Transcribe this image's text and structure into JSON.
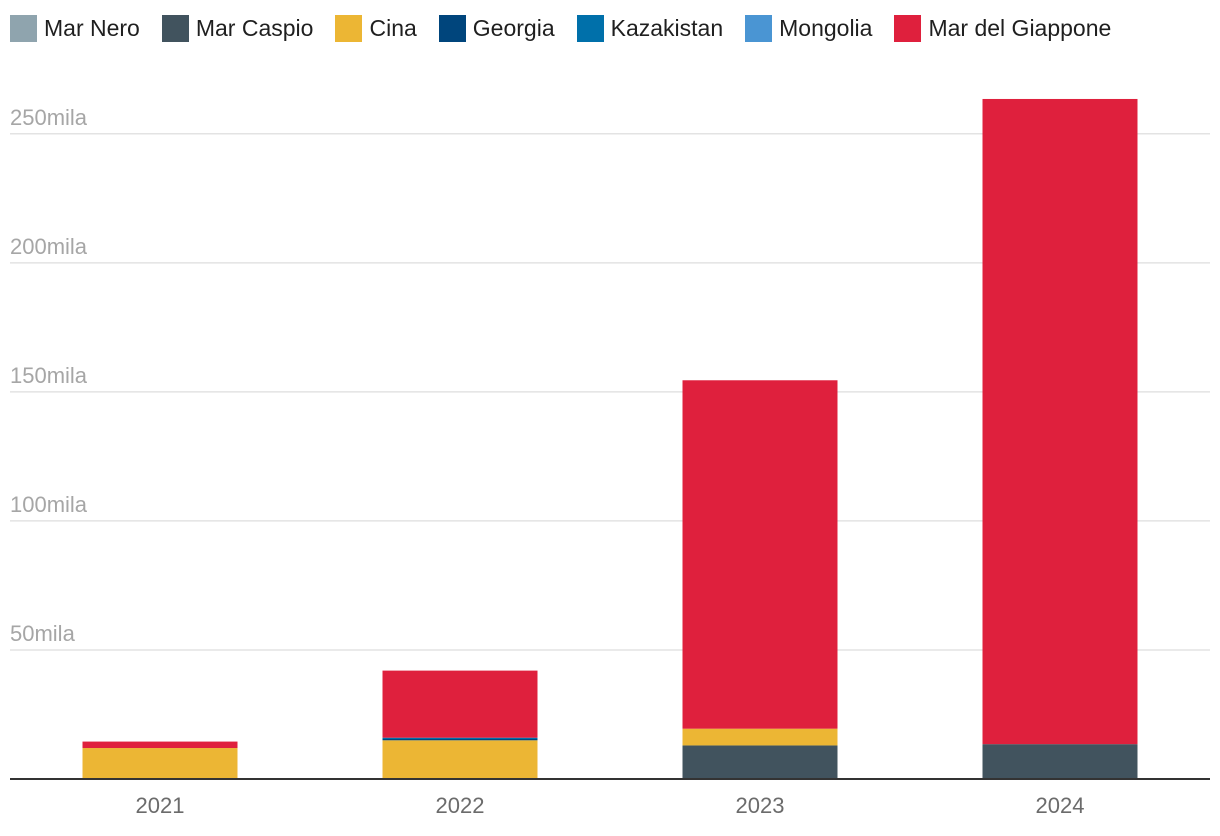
{
  "chart_data": {
    "type": "bar",
    "stacked": true,
    "title": "",
    "xlabel": "",
    "ylabel": "",
    "categories": [
      "2021",
      "2022",
      "2023",
      "2024"
    ],
    "ylim": [
      0,
      260000
    ],
    "yticks": [
      {
        "value": 50000,
        "label": "50mila"
      },
      {
        "value": 100000,
        "label": "100mila"
      },
      {
        "value": 150000,
        "label": "150mila"
      },
      {
        "value": 200000,
        "label": "200mila"
      },
      {
        "value": 250000,
        "label": "250mila"
      }
    ],
    "grid": true,
    "legend_position": "top-left",
    "series": [
      {
        "name": "Mar Nero",
        "color": "#8fa4ae",
        "values": [
          0,
          0,
          0,
          0
        ]
      },
      {
        "name": "Mar Caspio",
        "color": "#41535e",
        "values": [
          0,
          0,
          13000,
          13500
        ]
      },
      {
        "name": "Cina",
        "color": "#ecb634",
        "values": [
          12000,
          15000,
          6500,
          0
        ]
      },
      {
        "name": "Georgia",
        "color": "#00457c",
        "values": [
          0,
          500,
          0,
          0
        ]
      },
      {
        "name": "Kazakistan",
        "color": "#0070aa",
        "values": [
          0,
          500,
          0,
          0
        ]
      },
      {
        "name": "Mongolia",
        "color": "#4a95d3",
        "values": [
          0,
          0,
          0,
          0
        ]
      },
      {
        "name": "Mar del Giappone",
        "color": "#df203d",
        "values": [
          2500,
          26000,
          135000,
          250000
        ]
      }
    ]
  }
}
